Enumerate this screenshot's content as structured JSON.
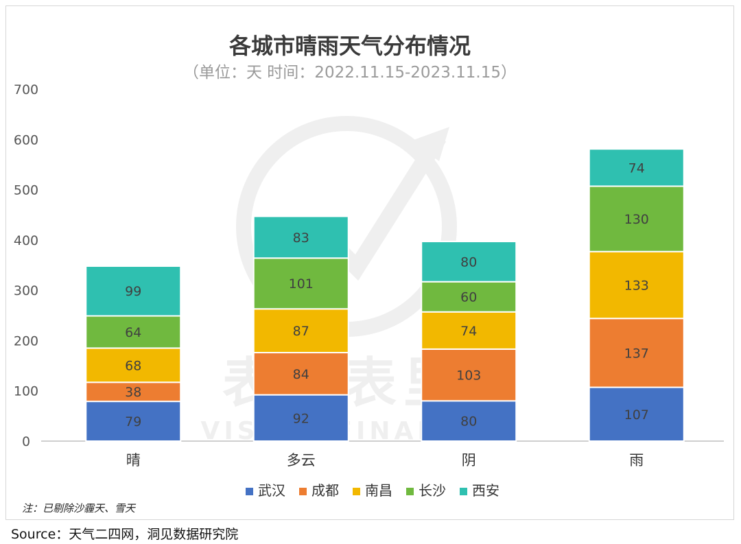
{
  "chart_data": {
    "type": "bar",
    "stacked": true,
    "title": "各城市晴雨天气分布情况",
    "subtitle": "（单位：天   时间：2022.11.15-2023.11.15）",
    "xlabel": "",
    "ylabel": "",
    "ylim": [
      0,
      700
    ],
    "yticks": [
      0,
      100,
      200,
      300,
      400,
      500,
      600,
      700
    ],
    "grid": false,
    "legend_position": "bottom",
    "categories": [
      "晴",
      "多云",
      "阴",
      "雨"
    ],
    "series": [
      {
        "name": "武汉",
        "color": "#4472C4",
        "values": [
          79,
          92,
          80,
          107
        ]
      },
      {
        "name": "成都",
        "color": "#ED7D31",
        "values": [
          38,
          84,
          103,
          137
        ]
      },
      {
        "name": "南昌",
        "color": "#F2B800",
        "values": [
          68,
          87,
          74,
          133
        ]
      },
      {
        "name": "长沙",
        "color": "#70B93F",
        "values": [
          64,
          101,
          60,
          130
        ]
      },
      {
        "name": "西安",
        "color": "#2FC0B0",
        "values": [
          99,
          83,
          80,
          74
        ]
      }
    ],
    "watermark": {
      "main": "表外表里",
      "sub": "VISION FINANCE"
    }
  },
  "note": "注：已剔除沙霾天、雪天",
  "source": "Source：天气二四网，洞见数据研究院"
}
